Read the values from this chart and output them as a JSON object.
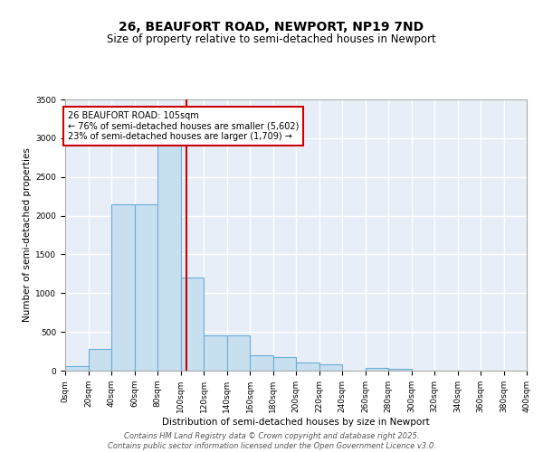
{
  "title_line1": "26, BEAUFORT ROAD, NEWPORT, NP19 7ND",
  "title_line2": "Size of property relative to semi-detached houses in Newport",
  "xlabel": "Distribution of semi-detached houses by size in Newport",
  "ylabel": "Number of semi-detached properties",
  "property_size": 105,
  "bin_edges": [
    0,
    20,
    40,
    60,
    80,
    100,
    120,
    140,
    160,
    180,
    200,
    220,
    240,
    260,
    280,
    300,
    320,
    340,
    360,
    380,
    400
  ],
  "bar_heights": [
    60,
    280,
    2150,
    2150,
    3000,
    1200,
    450,
    450,
    200,
    180,
    100,
    80,
    0,
    40,
    20,
    0,
    0,
    0,
    0,
    0
  ],
  "bar_color": "#c8dff0",
  "bar_edge_color": "#6aaed6",
  "vline_color": "#cc0000",
  "vline_x": 105,
  "annotation_text": "26 BEAUFORT ROAD: 105sqm\n← 76% of semi-detached houses are smaller (5,602)\n23% of semi-detached houses are larger (1,709) →",
  "annotation_box_color": "#cc0000",
  "ylim": [
    0,
    3500
  ],
  "yticks": [
    0,
    500,
    1000,
    1500,
    2000,
    2500,
    3000,
    3500
  ],
  "xlim": [
    0,
    400
  ],
  "background_color": "#e8eef8",
  "grid_color": "#ffffff",
  "footer_line1": "Contains HM Land Registry data © Crown copyright and database right 2025.",
  "footer_line2": "Contains public sector information licensed under the Open Government Licence v3.0.",
  "title_fontsize": 10,
  "subtitle_fontsize": 8.5,
  "axis_label_fontsize": 7.5,
  "tick_fontsize": 6.5,
  "annotation_fontsize": 7,
  "footer_fontsize": 6
}
